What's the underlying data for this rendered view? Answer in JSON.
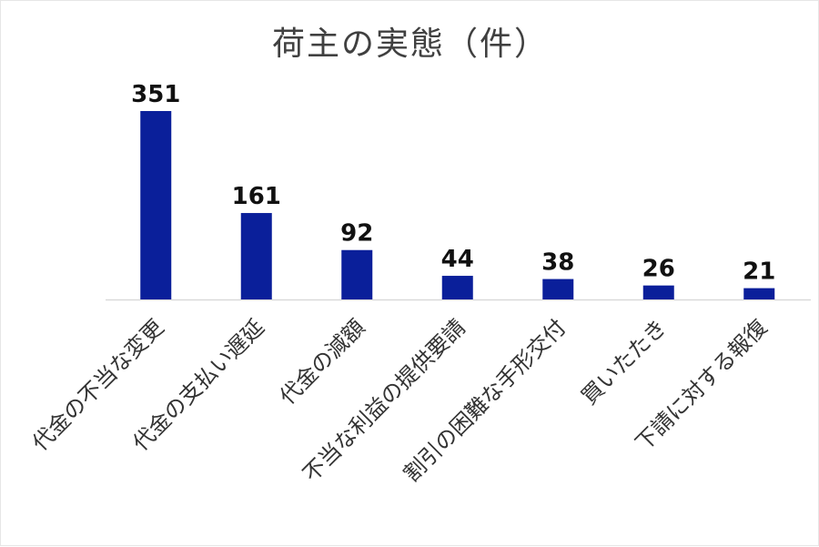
{
  "chart_data": {
    "type": "bar",
    "title": "荷主の実態（件）",
    "categories": [
      "代金の不当な変更",
      "代金の支払い遅延",
      "代金の減額",
      "不当な利益の提供要請",
      "割引の困難な手形交付",
      "買いたたき",
      "下請に対する報復"
    ],
    "values": [
      351,
      161,
      92,
      44,
      38,
      26,
      21
    ],
    "xlabel": "",
    "ylabel": "",
    "ylim": [
      0,
      351
    ],
    "grid": false,
    "legend": "none",
    "bar_color": "#0a1f9a",
    "axis_color": "#d9d9d9"
  }
}
